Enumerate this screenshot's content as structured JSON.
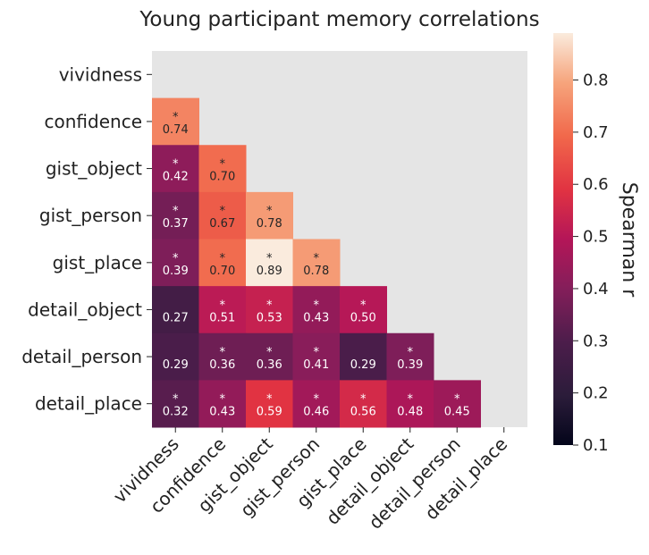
{
  "chart_data": {
    "type": "heatmap",
    "title": "Young participant memory correlations",
    "row_labels": [
      "vividness",
      "confidence",
      "gist_object",
      "gist_person",
      "gist_place",
      "detail_object",
      "detail_person",
      "detail_place"
    ],
    "col_labels": [
      "vividness",
      "confidence",
      "gist_object",
      "gist_person",
      "gist_place",
      "detail_object",
      "detail_person",
      "detail_place"
    ],
    "values": [
      [
        null,
        null,
        null,
        null,
        null,
        null,
        null,
        null
      ],
      [
        0.74,
        null,
        null,
        null,
        null,
        null,
        null,
        null
      ],
      [
        0.42,
        0.7,
        null,
        null,
        null,
        null,
        null,
        null
      ],
      [
        0.37,
        0.67,
        0.78,
        null,
        null,
        null,
        null,
        null
      ],
      [
        0.39,
        0.7,
        0.89,
        0.78,
        null,
        null,
        null,
        null
      ],
      [
        0.27,
        0.51,
        0.53,
        0.43,
        0.5,
        null,
        null,
        null
      ],
      [
        0.29,
        0.36,
        0.36,
        0.41,
        0.29,
        0.39,
        null,
        null
      ],
      [
        0.32,
        0.43,
        0.59,
        0.46,
        0.56,
        0.48,
        0.45,
        null
      ]
    ],
    "significant": [
      [
        false,
        false,
        false,
        false,
        false,
        false,
        false,
        false
      ],
      [
        true,
        false,
        false,
        false,
        false,
        false,
        false,
        false
      ],
      [
        true,
        true,
        false,
        false,
        false,
        false,
        false,
        false
      ],
      [
        true,
        true,
        true,
        false,
        false,
        false,
        false,
        false
      ],
      [
        true,
        true,
        true,
        true,
        false,
        false,
        false,
        false
      ],
      [
        false,
        true,
        true,
        true,
        true,
        false,
        false,
        false
      ],
      [
        false,
        true,
        true,
        true,
        false,
        true,
        false,
        false
      ],
      [
        true,
        true,
        true,
        true,
        true,
        true,
        true,
        false
      ]
    ],
    "significance_marker": "*",
    "masked_color": "#e5e5e5",
    "colorbar": {
      "label": "Spearman r",
      "range": [
        0.1,
        0.89
      ],
      "ticks": [
        "0.1",
        "0.2",
        "0.3",
        "0.4",
        "0.5",
        "0.6",
        "0.7",
        "0.8"
      ],
      "colormap": "rocket"
    }
  }
}
